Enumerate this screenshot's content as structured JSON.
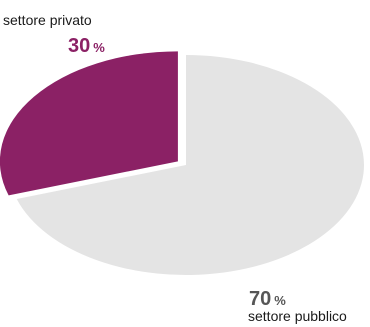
{
  "chart_data": {
    "type": "pie",
    "slices": [
      {
        "label": "settore privato",
        "value": 30,
        "unit": "%",
        "color": "#8b2165",
        "label_color": "#8b2165"
      },
      {
        "label": "settore pubblico",
        "value": 70,
        "unit": "%",
        "color": "#e4e4e4",
        "label_color": "#565656"
      }
    ],
    "exploded_slice": "settore privato",
    "legend": "none"
  }
}
